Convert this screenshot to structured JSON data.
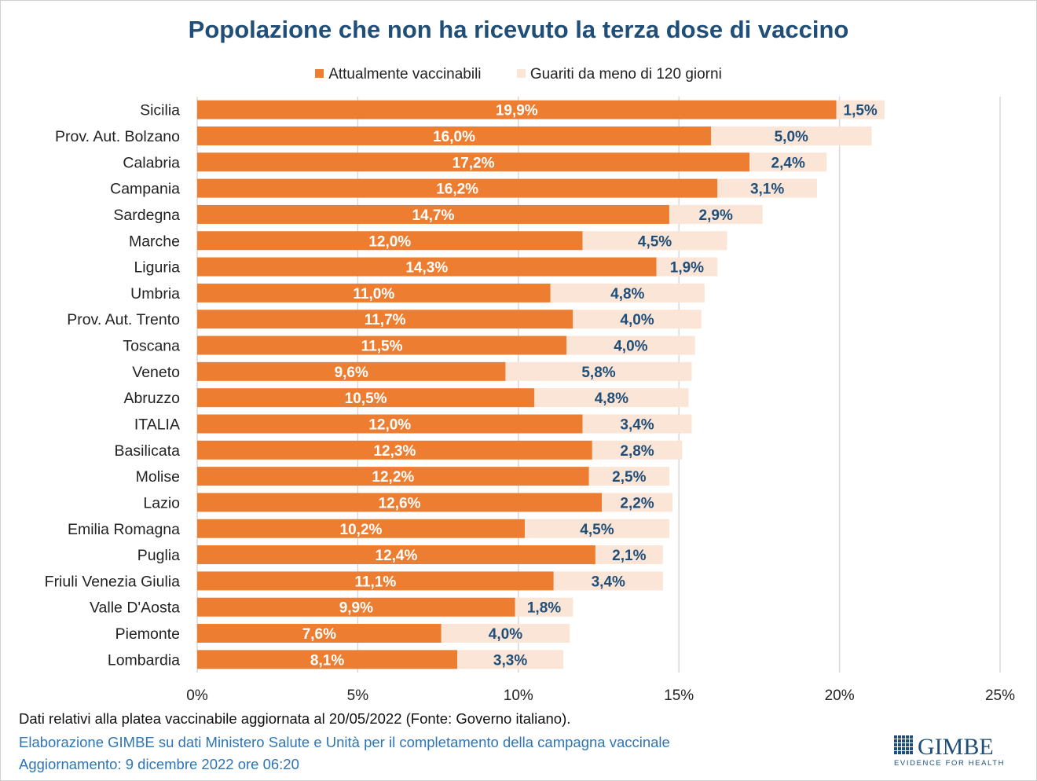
{
  "chart_data": {
    "type": "bar",
    "orientation": "horizontal",
    "stacked": true,
    "title": "Popolazione che non ha ricevuto la terza dose di vaccino",
    "categories": [
      "Sicilia",
      "Prov. Aut. Bolzano",
      "Calabria",
      "Campania",
      "Sardegna",
      "Marche",
      "Liguria",
      "Umbria",
      "Prov. Aut. Trento",
      "Toscana",
      "Veneto",
      "Abruzzo",
      "ITALIA",
      "Basilicata",
      "Molise",
      "Lazio",
      "Emilia Romagna",
      "Puglia",
      "Friuli Venezia Giulia",
      "Valle D'Aosta",
      "Piemonte",
      "Lombardia"
    ],
    "series": [
      {
        "name": "Attualmente vaccinabili",
        "color": "#ED7D31",
        "values": [
          19.9,
          16.0,
          17.2,
          16.2,
          14.7,
          12.0,
          14.3,
          11.0,
          11.7,
          11.5,
          9.6,
          10.5,
          12.0,
          12.3,
          12.2,
          12.6,
          10.2,
          12.4,
          11.1,
          9.9,
          7.6,
          8.1
        ]
      },
      {
        "name": "Guariti da meno di 120 giorni",
        "color": "#FBE5D6",
        "values": [
          1.5,
          5.0,
          2.4,
          3.1,
          2.9,
          4.5,
          1.9,
          4.8,
          4.0,
          4.0,
          5.8,
          4.8,
          3.4,
          2.8,
          2.5,
          2.2,
          4.5,
          2.1,
          3.4,
          1.8,
          4.0,
          3.3
        ]
      }
    ],
    "xlim": [
      0,
      25
    ],
    "xticks": [
      "0%",
      "5%",
      "10%",
      "15%",
      "20%",
      "25%"
    ],
    "xtick_values": [
      0,
      5,
      10,
      15,
      20,
      25
    ],
    "grid": true,
    "legend_position": "top",
    "data_label_format": "comma-decimal percent"
  },
  "footer": {
    "note": "Dati relativi alla platea vaccinabile aggiornata al 20/05/2022 (Fonte: Governo italiano).",
    "source": "Elaborazione GIMBE su dati Ministero Salute e Unità per il completamento della campagna vaccinale",
    "update": "Aggiornamento: 9 dicembre 2022 ore 06:20"
  },
  "logo": {
    "name": "GIMBE",
    "tagline": "EVIDENCE FOR HEALTH",
    "color": "#1F4E79"
  },
  "colors": {
    "title": "#1F4E79",
    "label_dark": "#1F4E79",
    "label_light": "#FFFFFF"
  }
}
